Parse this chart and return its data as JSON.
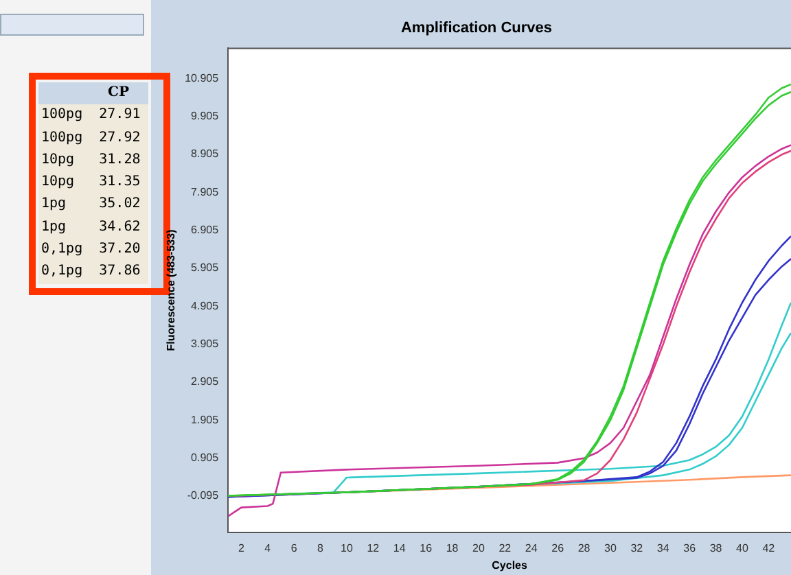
{
  "chart_data": {
    "type": "line",
    "title": "Amplification Curves",
    "xlabel": "Cycles",
    "ylabel": "Fluorescence (483-533)",
    "xlim": [
      1,
      43.7
    ],
    "ylim": [
      -1.05,
      11.7
    ],
    "xticks": [
      2,
      4,
      6,
      8,
      10,
      12,
      14,
      16,
      18,
      20,
      22,
      24,
      26,
      28,
      30,
      32,
      34,
      36,
      38,
      40,
      42
    ],
    "yticks": [
      {
        "value": -0.095,
        "label": "-0.095"
      },
      {
        "value": 0.905,
        "label": "0.905"
      },
      {
        "value": 1.905,
        "label": "1.905"
      },
      {
        "value": 2.905,
        "label": "2.905"
      },
      {
        "value": 3.905,
        "label": "3.905"
      },
      {
        "value": 4.905,
        "label": "4.905"
      },
      {
        "value": 5.905,
        "label": "5.905"
      },
      {
        "value": 6.905,
        "label": "6.905"
      },
      {
        "value": 7.905,
        "label": "7.905"
      },
      {
        "value": 8.905,
        "label": "8.905"
      },
      {
        "value": 9.905,
        "label": "9.905"
      },
      {
        "value": 10.905,
        "label": "10.905"
      }
    ],
    "grid": false,
    "legend": false,
    "marker": "none",
    "line_style": "solid",
    "annotations": [
      "CP",
      "100pg 27.91",
      "100pg 27.92",
      "10pg 31.28",
      "10pg 31.35",
      "1pg 35.02",
      "1pg 34.62",
      "0,1pg 37.20",
      "0,1pg 37.86"
    ],
    "series": [
      {
        "color": "#33cc33",
        "x": [
          1,
          10,
          20,
          24,
          26,
          27,
          28,
          29,
          30,
          31,
          32,
          33,
          34,
          35,
          36,
          37,
          38,
          39,
          40,
          41,
          42,
          43,
          43.7
        ],
        "values": [
          -0.09,
          0.0,
          0.15,
          0.22,
          0.35,
          0.55,
          0.86,
          1.35,
          2.0,
          2.8,
          3.9,
          5.0,
          6.1,
          6.95,
          7.7,
          8.3,
          8.75,
          9.15,
          9.55,
          9.95,
          10.4,
          10.65,
          10.75
        ]
      },
      {
        "color": "#33cc33",
        "x": [
          1,
          10,
          20,
          24,
          26,
          27,
          28,
          29,
          30,
          31,
          32,
          33,
          34,
          35,
          36,
          37,
          38,
          39,
          40,
          41,
          42,
          43,
          43.7
        ],
        "values": [
          -0.09,
          0.0,
          0.15,
          0.22,
          0.33,
          0.5,
          0.8,
          1.3,
          1.9,
          2.7,
          3.8,
          4.9,
          6.0,
          6.85,
          7.6,
          8.2,
          8.65,
          9.05,
          9.45,
          9.85,
          10.2,
          10.45,
          10.55
        ]
      },
      {
        "color": "#cc3399",
        "x": [
          1,
          2,
          4,
          4.4,
          5,
          10,
          20,
          26,
          28,
          29,
          30,
          31,
          32,
          33,
          34,
          35,
          36,
          37,
          38,
          39,
          40,
          41,
          42,
          43,
          43.7
        ],
        "values": [
          -0.63,
          -0.4,
          -0.36,
          -0.3,
          0.52,
          0.6,
          0.7,
          0.78,
          0.9,
          1.05,
          1.3,
          1.7,
          2.4,
          3.1,
          4.1,
          5.1,
          6.0,
          6.8,
          7.4,
          7.9,
          8.3,
          8.6,
          8.85,
          9.05,
          9.15
        ]
      },
      {
        "color": "#e0407a",
        "x": [
          1,
          10,
          20,
          24,
          28,
          29,
          30,
          31,
          32,
          33,
          34,
          35,
          36,
          37,
          38,
          39,
          40,
          41,
          42,
          43,
          43.7
        ],
        "values": [
          -0.1,
          0.0,
          0.15,
          0.2,
          0.32,
          0.5,
          0.85,
          1.4,
          2.1,
          3.0,
          3.9,
          4.9,
          5.8,
          6.6,
          7.2,
          7.75,
          8.15,
          8.45,
          8.7,
          8.9,
          9.0
        ]
      },
      {
        "color": "#3333cc",
        "x": [
          1,
          10,
          20,
          28,
          32,
          33,
          34,
          35,
          36,
          37,
          38,
          39,
          40,
          41,
          42,
          43,
          43.7
        ],
        "values": [
          -0.12,
          0.0,
          0.15,
          0.3,
          0.4,
          0.55,
          0.8,
          1.3,
          2.0,
          2.8,
          3.5,
          4.3,
          5.0,
          5.6,
          6.1,
          6.5,
          6.75
        ]
      },
      {
        "color": "#3333cc",
        "x": [
          1,
          10,
          20,
          28,
          32,
          33,
          34,
          35,
          36,
          37,
          38,
          39,
          40,
          41,
          42,
          43,
          43.7
        ],
        "values": [
          -0.12,
          0.0,
          0.15,
          0.3,
          0.38,
          0.5,
          0.7,
          1.1,
          1.8,
          2.6,
          3.3,
          4.0,
          4.6,
          5.2,
          5.6,
          5.95,
          6.15
        ]
      },
      {
        "color": "#33cccc",
        "x": [
          1,
          9,
          10,
          20,
          30,
          34,
          36,
          37,
          38,
          39,
          40,
          41,
          42,
          43,
          43.7
        ],
        "values": [
          -0.1,
          0.0,
          0.39,
          0.5,
          0.62,
          0.7,
          0.85,
          1.0,
          1.2,
          1.5,
          2.0,
          2.7,
          3.5,
          4.4,
          5.0
        ]
      },
      {
        "color": "#33cccc",
        "x": [
          1,
          10,
          20,
          30,
          34,
          36,
          37,
          38,
          39,
          40,
          41,
          42,
          43,
          43.7
        ],
        "values": [
          -0.1,
          0.0,
          0.15,
          0.3,
          0.45,
          0.6,
          0.75,
          0.95,
          1.25,
          1.7,
          2.4,
          3.1,
          3.8,
          4.2
        ]
      },
      {
        "color": "#ff9966",
        "x": [
          1,
          10,
          20,
          30,
          36,
          40,
          43.7
        ],
        "values": [
          -0.09,
          0.0,
          0.12,
          0.25,
          0.33,
          0.4,
          0.45
        ]
      }
    ]
  }
}
